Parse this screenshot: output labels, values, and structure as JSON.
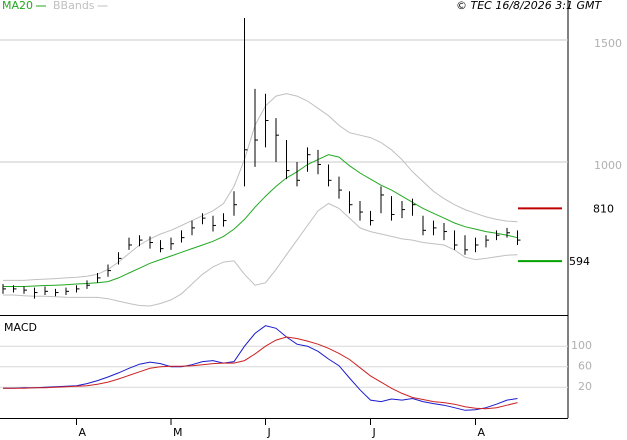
{
  "copyright": "© TEC 16/8/2026 3:1 GMT",
  "chart_data": [
    {
      "type": "hlc",
      "categories": [
        null,
        null,
        null,
        null,
        null,
        null,
        null,
        "A",
        null,
        null,
        null,
        null,
        null,
        null,
        null,
        null,
        "M",
        null,
        null,
        null,
        null,
        null,
        null,
        null,
        null,
        "J",
        null,
        null,
        null,
        null,
        null,
        null,
        null,
        null,
        null,
        "J",
        null,
        null,
        null,
        null,
        null,
        null,
        null,
        null,
        null,
        "A",
        null,
        null,
        null,
        null
      ],
      "high": [
        500,
        495,
        490,
        485,
        490,
        480,
        485,
        495,
        515,
        545,
        580,
        630,
        690,
        700,
        695,
        680,
        690,
        720,
        760,
        790,
        780,
        790,
        880,
        1590,
        1300,
        1280,
        1180,
        1090,
        1000,
        1060,
        1050,
        990,
        940,
        880,
        840,
        800,
        900,
        860,
        840,
        850,
        780,
        760,
        750,
        720,
        700,
        690,
        700,
        720,
        730,
        720
      ],
      "low": [
        460,
        465,
        460,
        440,
        455,
        450,
        455,
        465,
        480,
        505,
        530,
        580,
        640,
        655,
        645,
        630,
        640,
        670,
        700,
        745,
        715,
        735,
        780,
        900,
        980,
        1060,
        1000,
        930,
        900,
        960,
        950,
        900,
        850,
        790,
        760,
        740,
        790,
        760,
        770,
        780,
        700,
        700,
        680,
        640,
        620,
        630,
        650,
        680,
        690,
        660
      ],
      "close": [
        480,
        480,
        475,
        465,
        470,
        465,
        470,
        480,
        495,
        525,
        555,
        605,
        660,
        680,
        670,
        645,
        665,
        690,
        730,
        770,
        740,
        760,
        825,
        1050,
        1090,
        1170,
        1110,
        965,
        925,
        1030,
        990,
        925,
        885,
        825,
        795,
        760,
        865,
        785,
        805,
        825,
        720,
        730,
        715,
        660,
        640,
        660,
        680,
        700,
        710,
        680
      ],
      "color": "#000000",
      "series": [
        {
          "name": "MA20",
          "color": "#22a822",
          "values": [
            490,
            490,
            490,
            492,
            494,
            495,
            497,
            500,
            502,
            505,
            510,
            525,
            545,
            565,
            585,
            600,
            615,
            630,
            645,
            660,
            675,
            695,
            725,
            765,
            815,
            860,
            900,
            935,
            960,
            990,
            1010,
            1030,
            1020,
            985,
            955,
            930,
            905,
            885,
            860,
            835,
            810,
            790,
            770,
            750,
            735,
            725,
            715,
            708,
            700,
            690
          ]
        }
      ],
      "bbands": {
        "name": "BBands",
        "color": "#c0c0c0",
        "upper": [
          515,
          515,
          515,
          518,
          520,
          522,
          525,
          528,
          532,
          540,
          560,
          590,
          625,
          660,
          685,
          705,
          720,
          740,
          760,
          780,
          800,
          830,
          900,
          1010,
          1150,
          1230,
          1270,
          1280,
          1270,
          1250,
          1220,
          1190,
          1150,
          1120,
          1110,
          1100,
          1080,
          1050,
          1010,
          960,
          920,
          880,
          850,
          825,
          805,
          790,
          775,
          765,
          758,
          755
        ],
        "lower": [
          455,
          455,
          452,
          450,
          450,
          448,
          446,
          445,
          445,
          445,
          440,
          430,
          420,
          412,
          410,
          420,
          435,
          460,
          500,
          540,
          570,
          590,
          595,
          540,
          495,
          505,
          560,
          620,
          680,
          740,
          800,
          830,
          810,
          770,
          730,
          715,
          705,
          695,
          685,
          680,
          670,
          665,
          660,
          640,
          610,
          600,
          605,
          612,
          618,
          620
        ]
      },
      "markers": [
        {
          "value": 810,
          "color": "#c00000"
        },
        {
          "value": 594,
          "color": "#00a000"
        }
      ],
      "ylim": [
        373,
        1664
      ],
      "yticks": [
        1000,
        1500
      ],
      "grid": true
    },
    {
      "type": "line",
      "title": "MACD",
      "series": [
        {
          "color": "#1a1acc",
          "values": [
            18,
            18,
            19,
            19,
            20,
            21,
            22,
            23,
            27,
            33,
            40,
            48,
            57,
            65,
            69,
            66,
            60,
            60,
            64,
            70,
            72,
            67,
            70,
            100,
            125,
            140,
            135,
            118,
            104,
            100,
            90,
            75,
            62,
            38,
            15,
            -5,
            -8,
            -3,
            -5,
            -2,
            -8,
            -12,
            -15,
            -20,
            -25,
            -24,
            -20,
            -13,
            -5,
            -2
          ]
        },
        {
          "color": "#cc2222",
          "values": [
            18,
            18,
            18,
            19,
            19,
            20,
            21,
            22,
            23,
            26,
            30,
            36,
            43,
            50,
            57,
            60,
            61,
            61,
            62,
            64,
            66,
            67,
            67,
            72,
            85,
            100,
            112,
            118,
            115,
            110,
            104,
            96,
            86,
            74,
            58,
            42,
            30,
            18,
            8,
            0,
            -4,
            -8,
            -10,
            -13,
            -18,
            -21,
            -22,
            -20,
            -15,
            -10
          ]
        }
      ],
      "ylim": [
        -40,
        155
      ],
      "yticks": [
        20,
        60,
        100
      ],
      "grid": true
    }
  ]
}
